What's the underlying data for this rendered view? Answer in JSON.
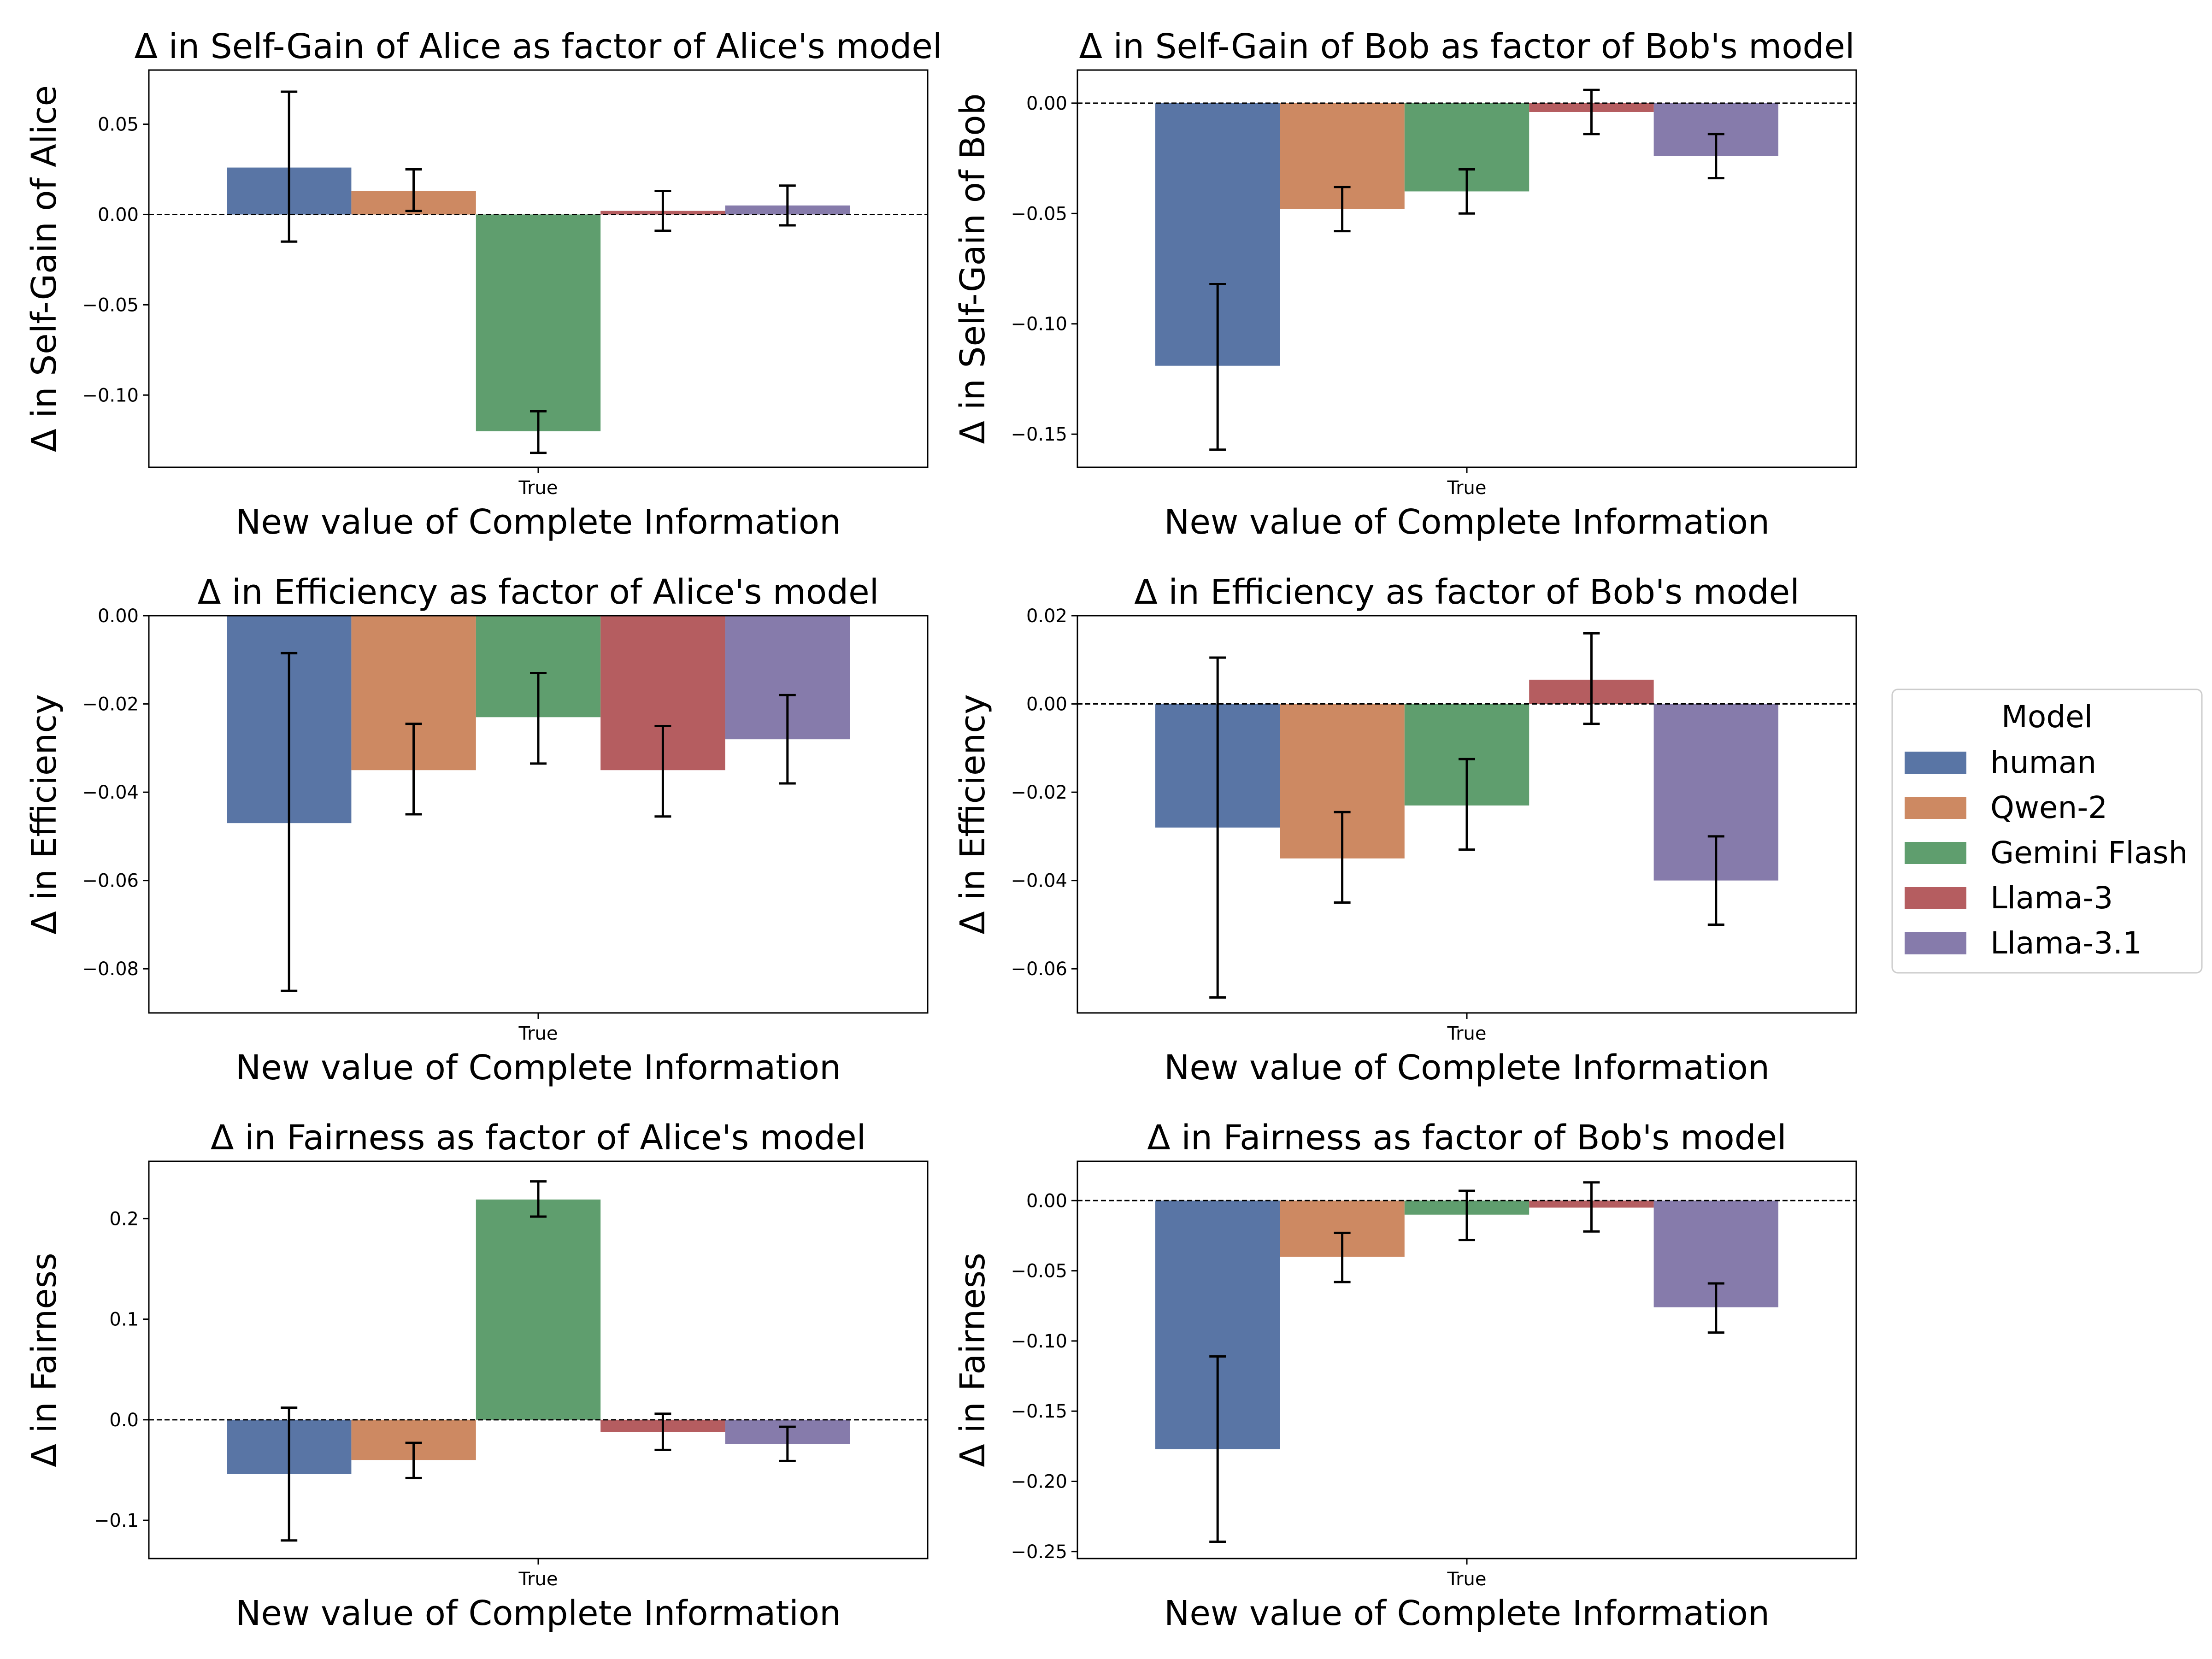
{
  "models": [
    "human",
    "Qwen-2",
    "Gemini Flash",
    "Llama-3",
    "Llama-3.1"
  ],
  "colors": {
    "human": "#5975a5",
    "Qwen-2": "#cd8962",
    "Gemini Flash": "#5f9e6e",
    "Llama-3": "#b55d60",
    "Llama-3.1": "#867bab"
  },
  "legend": {
    "title": "Model"
  },
  "chart_data": [
    {
      "type": "bar",
      "title": "Δ in Self-Gain of Alice as factor of Alice's model",
      "xlabel": "New value of Complete Information",
      "ylabel": "Δ in Self-Gain of Alice",
      "categories": [
        "True"
      ],
      "ylim": [
        -0.14,
        0.08
      ],
      "yticks": [
        0.05,
        0.0,
        -0.05,
        -0.1
      ],
      "ytick_labels": [
        "0.05",
        "0.00",
        "−0.05",
        "−0.10"
      ],
      "series": [
        {
          "name": "human",
          "values": [
            0.026
          ],
          "err": [
            [
              -0.015,
              0.068
            ]
          ]
        },
        {
          "name": "Qwen-2",
          "values": [
            0.013
          ],
          "err": [
            [
              0.002,
              0.025
            ]
          ]
        },
        {
          "name": "Gemini Flash",
          "values": [
            -0.12
          ],
          "err": [
            [
              -0.132,
              -0.109
            ]
          ]
        },
        {
          "name": "Llama-3",
          "values": [
            0.002
          ],
          "err": [
            [
              -0.009,
              0.013
            ]
          ]
        },
        {
          "name": "Llama-3.1",
          "values": [
            0.005
          ],
          "err": [
            [
              -0.006,
              0.016
            ]
          ]
        }
      ]
    },
    {
      "type": "bar",
      "title": "Δ in Self-Gain of Bob as factor of Bob's model",
      "xlabel": "New value of Complete Information",
      "ylabel": "Δ in Self-Gain of Bob",
      "categories": [
        "True"
      ],
      "ylim": [
        -0.165,
        0.015
      ],
      "yticks": [
        0.0,
        -0.05,
        -0.1,
        -0.15
      ],
      "ytick_labels": [
        "0.00",
        "−0.05",
        "−0.10",
        "−0.15"
      ],
      "series": [
        {
          "name": "human",
          "values": [
            -0.119
          ],
          "err": [
            [
              -0.157,
              -0.082
            ]
          ]
        },
        {
          "name": "Qwen-2",
          "values": [
            -0.048
          ],
          "err": [
            [
              -0.058,
              -0.038
            ]
          ]
        },
        {
          "name": "Gemini Flash",
          "values": [
            -0.04
          ],
          "err": [
            [
              -0.05,
              -0.03
            ]
          ]
        },
        {
          "name": "Llama-3",
          "values": [
            -0.004
          ],
          "err": [
            [
              -0.014,
              0.006
            ]
          ]
        },
        {
          "name": "Llama-3.1",
          "values": [
            -0.024
          ],
          "err": [
            [
              -0.034,
              -0.014
            ]
          ]
        }
      ]
    },
    {
      "type": "bar",
      "title": "Δ in Efficiency as factor of Alice's model",
      "xlabel": "New value of Complete Information",
      "ylabel": "Δ in Efficiency",
      "categories": [
        "True"
      ],
      "ylim": [
        -0.09,
        0.0
      ],
      "yticks": [
        0.0,
        -0.02,
        -0.04,
        -0.06,
        -0.08
      ],
      "ytick_labels": [
        "0.00",
        "−0.02",
        "−0.04",
        "−0.06",
        "−0.08"
      ],
      "series": [
        {
          "name": "human",
          "values": [
            -0.047
          ],
          "err": [
            [
              -0.085,
              -0.0085
            ]
          ]
        },
        {
          "name": "Qwen-2",
          "values": [
            -0.035
          ],
          "err": [
            [
              -0.045,
              -0.0245
            ]
          ]
        },
        {
          "name": "Gemini Flash",
          "values": [
            -0.023
          ],
          "err": [
            [
              -0.0335,
              -0.013
            ]
          ]
        },
        {
          "name": "Llama-3",
          "values": [
            -0.035
          ],
          "err": [
            [
              -0.0455,
              -0.025
            ]
          ]
        },
        {
          "name": "Llama-3.1",
          "values": [
            -0.028
          ],
          "err": [
            [
              -0.038,
              -0.018
            ]
          ]
        }
      ]
    },
    {
      "type": "bar",
      "title": "Δ in Efficiency as factor of Bob's model",
      "xlabel": "New value of Complete Information",
      "ylabel": "Δ in Efficiency",
      "categories": [
        "True"
      ],
      "ylim": [
        -0.07,
        0.02
      ],
      "yticks": [
        0.02,
        0.0,
        -0.02,
        -0.04,
        -0.06
      ],
      "ytick_labels": [
        "0.02",
        "0.00",
        "−0.02",
        "−0.04",
        "−0.06"
      ],
      "series": [
        {
          "name": "human",
          "values": [
            -0.028
          ],
          "err": [
            [
              -0.0665,
              0.0105
            ]
          ]
        },
        {
          "name": "Qwen-2",
          "values": [
            -0.035
          ],
          "err": [
            [
              -0.045,
              -0.0245
            ]
          ]
        },
        {
          "name": "Gemini Flash",
          "values": [
            -0.023
          ],
          "err": [
            [
              -0.033,
              -0.0125
            ]
          ]
        },
        {
          "name": "Llama-3",
          "values": [
            0.0055
          ],
          "err": [
            [
              -0.0045,
              0.016
            ]
          ]
        },
        {
          "name": "Llama-3.1",
          "values": [
            -0.04
          ],
          "err": [
            [
              -0.05,
              -0.03
            ]
          ]
        }
      ]
    },
    {
      "type": "bar",
      "title": "Δ in Fairness as factor of Alice's model",
      "xlabel": "New value of Complete Information",
      "ylabel": "Δ in Fairness",
      "categories": [
        "True"
      ],
      "ylim": [
        -0.138,
        0.257
      ],
      "yticks": [
        0.2,
        0.1,
        0.0,
        -0.1
      ],
      "ytick_labels": [
        "0.2",
        "0.1",
        "0.0",
        "−0.1"
      ],
      "series": [
        {
          "name": "human",
          "values": [
            -0.054
          ],
          "err": [
            [
              -0.12,
              0.012
            ]
          ]
        },
        {
          "name": "Qwen-2",
          "values": [
            -0.04
          ],
          "err": [
            [
              -0.058,
              -0.023
            ]
          ]
        },
        {
          "name": "Gemini Flash",
          "values": [
            0.219
          ],
          "err": [
            [
              0.202,
              0.237
            ]
          ]
        },
        {
          "name": "Llama-3",
          "values": [
            -0.012
          ],
          "err": [
            [
              -0.03,
              0.006
            ]
          ]
        },
        {
          "name": "Llama-3.1",
          "values": [
            -0.024
          ],
          "err": [
            [
              -0.041,
              -0.007
            ]
          ]
        }
      ]
    },
    {
      "type": "bar",
      "title": "Δ in Fairness as factor of Bob's model",
      "xlabel": "New value of Complete Information",
      "ylabel": "Δ in Fairness",
      "categories": [
        "True"
      ],
      "ylim": [
        -0.255,
        0.028
      ],
      "yticks": [
        0.0,
        -0.05,
        -0.1,
        -0.15,
        -0.2,
        -0.25
      ],
      "ytick_labels": [
        "0.00",
        "−0.05",
        "−0.10",
        "−0.15",
        "−0.20",
        "−0.25"
      ],
      "series": [
        {
          "name": "human",
          "values": [
            -0.177
          ],
          "err": [
            [
              -0.243,
              -0.111
            ]
          ]
        },
        {
          "name": "Qwen-2",
          "values": [
            -0.04
          ],
          "err": [
            [
              -0.058,
              -0.023
            ]
          ]
        },
        {
          "name": "Gemini Flash",
          "values": [
            -0.01
          ],
          "err": [
            [
              -0.028,
              0.007
            ]
          ]
        },
        {
          "name": "Llama-3",
          "values": [
            -0.005
          ],
          "err": [
            [
              -0.022,
              0.013
            ]
          ]
        },
        {
          "name": "Llama-3.1",
          "values": [
            -0.076
          ],
          "err": [
            [
              -0.094,
              -0.059
            ]
          ]
        }
      ]
    }
  ]
}
